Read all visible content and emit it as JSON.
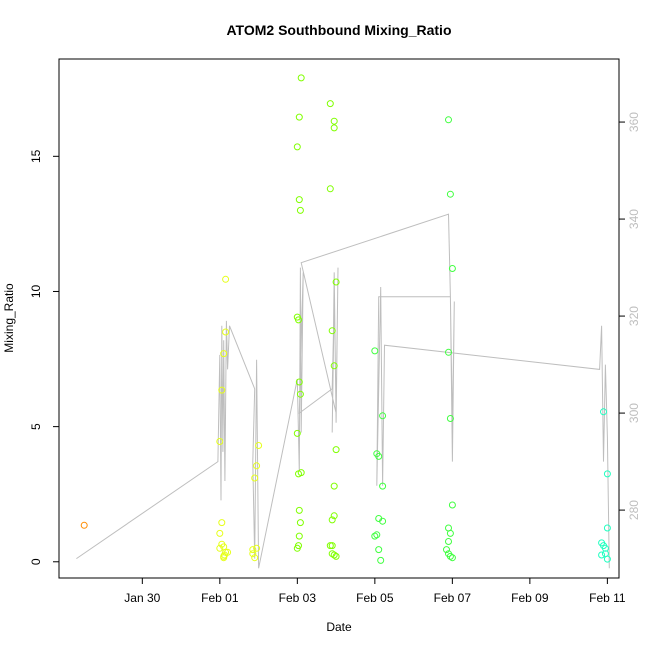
{
  "chart_data": {
    "type": "scatter",
    "title": "ATOM2 Southbound Mixing_Ratio",
    "xlabel": "Date",
    "ylabel": "Mixing_Ratio",
    "x_unit": "days (0 = Jan 28)",
    "xlim": [
      -0.15,
      14.3
    ],
    "ylim": [
      -0.6,
      18.6
    ],
    "y2lim": [
      266,
      373
    ],
    "x_ticks": [
      {
        "v": 2,
        "label": "Jan 30"
      },
      {
        "v": 4,
        "label": "Feb 01"
      },
      {
        "v": 6,
        "label": "Feb 03"
      },
      {
        "v": 8,
        "label": "Feb 05"
      },
      {
        "v": 10,
        "label": "Feb 07"
      },
      {
        "v": 12,
        "label": "Feb 09"
      },
      {
        "v": 14,
        "label": "Feb 11"
      }
    ],
    "y_ticks": [
      0,
      5,
      10,
      15
    ],
    "y2_ticks": [
      280,
      300,
      320,
      340,
      360
    ],
    "grid": false,
    "series": [
      {
        "color": "#ff8c00",
        "points": [
          [
            0.5,
            1.35
          ]
        ]
      },
      {
        "color": "#e6ff1a",
        "points": [
          [
            4.0,
            0.5
          ],
          [
            4.05,
            0.65
          ],
          [
            4.1,
            0.2
          ],
          [
            4.15,
            0.35
          ],
          [
            4.0,
            1.05
          ],
          [
            4.05,
            1.45
          ],
          [
            4.1,
            0.55
          ],
          [
            4.12,
            0.25
          ],
          [
            4.0,
            4.45
          ],
          [
            4.05,
            6.35
          ],
          [
            4.1,
            7.7
          ],
          [
            4.15,
            8.5
          ],
          [
            4.15,
            10.45
          ],
          [
            4.2,
            0.35
          ],
          [
            4.1,
            0.15
          ],
          [
            4.85,
            0.45
          ],
          [
            4.9,
            0.15
          ],
          [
            4.95,
            0.5
          ],
          [
            4.85,
            0.3
          ],
          [
            4.9,
            3.1
          ],
          [
            4.95,
            3.55
          ],
          [
            5.0,
            4.3
          ]
        ]
      },
      {
        "color": "#80ff00",
        "points": [
          [
            6.0,
            15.35
          ],
          [
            6.05,
            16.45
          ],
          [
            6.1,
            17.9
          ],
          [
            6.05,
            13.4
          ],
          [
            6.08,
            13.0
          ],
          [
            6.0,
            9.05
          ],
          [
            6.03,
            8.95
          ],
          [
            6.05,
            6.65
          ],
          [
            6.08,
            6.2
          ],
          [
            6.0,
            4.75
          ],
          [
            6.03,
            3.25
          ],
          [
            6.1,
            3.3
          ],
          [
            6.05,
            1.9
          ],
          [
            6.08,
            1.45
          ],
          [
            6.0,
            0.5
          ],
          [
            6.03,
            0.6
          ],
          [
            6.05,
            0.95
          ],
          [
            6.85,
            16.95
          ],
          [
            6.95,
            16.3
          ],
          [
            6.95,
            16.05
          ],
          [
            6.85,
            13.8
          ],
          [
            6.9,
            8.55
          ],
          [
            6.95,
            7.25
          ],
          [
            7.0,
            10.35
          ],
          [
            7.0,
            4.15
          ],
          [
            6.95,
            2.8
          ],
          [
            6.95,
            1.7
          ],
          [
            6.9,
            1.55
          ],
          [
            6.85,
            0.6
          ],
          [
            6.9,
            0.3
          ],
          [
            6.95,
            0.25
          ],
          [
            7.0,
            0.2
          ],
          [
            6.9,
            0.6
          ]
        ]
      },
      {
        "color": "#40ff40",
        "points": [
          [
            8.0,
            7.8
          ],
          [
            8.05,
            4.0
          ],
          [
            8.1,
            3.9
          ],
          [
            8.2,
            5.4
          ],
          [
            8.2,
            2.8
          ],
          [
            8.1,
            1.6
          ],
          [
            8.2,
            1.5
          ],
          [
            8.0,
            0.95
          ],
          [
            8.05,
            1.0
          ],
          [
            8.1,
            0.45
          ],
          [
            8.15,
            0.05
          ],
          [
            9.9,
            16.35
          ],
          [
            9.95,
            13.6
          ],
          [
            10.0,
            10.85
          ],
          [
            9.9,
            7.75
          ],
          [
            9.95,
            5.3
          ],
          [
            10.0,
            2.1
          ],
          [
            9.9,
            1.25
          ],
          [
            9.95,
            1.05
          ],
          [
            9.9,
            0.75
          ],
          [
            9.85,
            0.45
          ],
          [
            9.9,
            0.3
          ],
          [
            9.95,
            0.2
          ],
          [
            10.0,
            0.15
          ]
        ]
      },
      {
        "color": "#20ffc0",
        "points": [
          [
            13.9,
            5.55
          ],
          [
            14.0,
            3.25
          ],
          [
            14.0,
            1.25
          ],
          [
            13.85,
            0.7
          ],
          [
            13.9,
            0.6
          ],
          [
            13.95,
            0.5
          ],
          [
            13.85,
            0.25
          ],
          [
            13.95,
            0.3
          ],
          [
            14.0,
            0.1
          ]
        ]
      }
    ],
    "line_series": {
      "color": "#bebebe",
      "axis": "right",
      "points": [
        [
          0.3,
          270
        ],
        [
          3.95,
          290
        ],
        [
          4.0,
          312
        ],
        [
          4.03,
          282
        ],
        [
          4.05,
          318
        ],
        [
          4.08,
          292
        ],
        [
          4.1,
          315
        ],
        [
          4.13,
          286
        ],
        [
          4.17,
          319
        ],
        [
          4.2,
          309
        ],
        [
          4.25,
          318
        ],
        [
          4.9,
          305
        ],
        [
          4.85,
          290
        ],
        [
          4.9,
          270
        ],
        [
          4.95,
          311
        ],
        [
          5.0,
          268
        ],
        [
          6.0,
          307
        ],
        [
          6.05,
          288
        ],
        [
          6.08,
          330
        ],
        [
          6.1,
          296
        ],
        [
          6.15,
          329
        ],
        [
          6.1,
          315
        ],
        [
          6.05,
          300
        ],
        [
          6.9,
          305
        ],
        [
          6.95,
          323
        ],
        [
          6.9,
          296
        ],
        [
          6.95,
          329
        ],
        [
          7.0,
          298
        ],
        [
          7.05,
          330
        ],
        [
          7.0,
          300
        ],
        [
          6.1,
          331
        ],
        [
          9.9,
          341
        ],
        [
          9.95,
          324
        ],
        [
          10.0,
          297
        ],
        [
          10.05,
          323
        ],
        [
          10.0,
          290
        ],
        [
          9.95,
          324
        ],
        [
          8.1,
          324
        ],
        [
          8.05,
          285
        ],
        [
          8.15,
          326
        ],
        [
          8.2,
          285
        ],
        [
          8.25,
          314
        ],
        [
          13.8,
          309
        ],
        [
          13.85,
          318
        ],
        [
          13.9,
          290
        ],
        [
          13.95,
          310
        ],
        [
          14.0,
          295
        ],
        [
          14.05,
          268
        ]
      ]
    }
  }
}
